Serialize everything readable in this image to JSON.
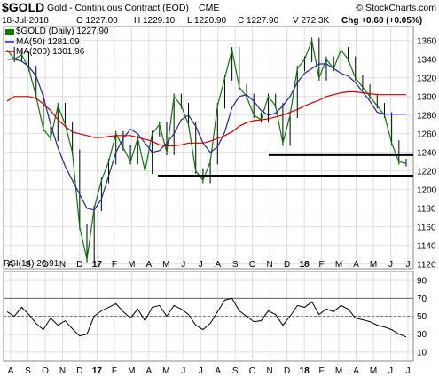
{
  "header": {
    "symbol": "$GOLD",
    "name": "Gold - Continuous Contract (EOD)",
    "exchange": "CME",
    "brand": "© StockCharts.com",
    "date": "18-Jul-2018",
    "quote": {
      "open": "O 1227.00",
      "high": "H 1229.10",
      "low": "L 1220.90",
      "close": "C 1227.90",
      "volume": "V 272.3K",
      "change": "Chg +0.60 (+0.05%)"
    }
  },
  "legend": {
    "price": "$GOLD (Daily) 1227.90",
    "ma50": "MA(50) 1281.09",
    "ma200": "MA(200) 1301.96"
  },
  "rsi_panel": {
    "label": "RSI(14) 26.91"
  },
  "colors": {
    "price": "#008000",
    "bar": "#000000",
    "ma50": "#2222aa",
    "ma200": "#cc0000",
    "grid": "#d6d6d6",
    "rsi": "#000000"
  },
  "chart_data": [
    {
      "type": "line",
      "title": "$GOLD (Daily) 1227.90",
      "x_ticks": [
        "A",
        "S",
        "O",
        "N",
        "D",
        "17",
        "F",
        "M",
        "A",
        "M",
        "J",
        "J",
        "A",
        "S",
        "O",
        "N",
        "D",
        "18",
        "F",
        "M",
        "A",
        "M",
        "J",
        "J"
      ],
      "ylim": [
        1115,
        1375
      ],
      "y_ticks": [
        1120,
        1140,
        1160,
        1180,
        1200,
        1220,
        1240,
        1260,
        1280,
        1300,
        1320,
        1340,
        1360
      ],
      "series": [
        {
          "name": "$GOLD",
          "values": [
            1350,
            1340,
            1345,
            1330,
            1300,
            1265,
            1255,
            1290,
            1270,
            1240,
            1160,
            1125,
            1180,
            1210,
            1230,
            1260,
            1245,
            1230,
            1255,
            1220,
            1260,
            1270,
            1240,
            1300,
            1290,
            1270,
            1220,
            1210,
            1230,
            1290,
            1320,
            1350,
            1310,
            1300,
            1280,
            1275,
            1300,
            1290,
            1250,
            1280,
            1330,
            1340,
            1360,
            1320,
            1340,
            1330,
            1350,
            1340,
            1320,
            1310,
            1300,
            1290,
            1280,
            1250,
            1230,
            1228
          ]
        },
        {
          "name": "MA(50)",
          "values": [
            1340,
            1340,
            1338,
            1332,
            1322,
            1300,
            1270,
            1245,
            1225,
            1210,
            1195,
            1180,
            1178,
            1190,
            1215,
            1240,
            1255,
            1265,
            1260,
            1250,
            1240,
            1242,
            1250,
            1260,
            1275,
            1280,
            1268,
            1250,
            1240,
            1246,
            1262,
            1288,
            1300,
            1302,
            1295,
            1285,
            1280,
            1282,
            1290,
            1300,
            1315,
            1325,
            1330,
            1335,
            1335,
            1330,
            1325,
            1322,
            1315,
            1305,
            1295,
            1283,
            1281,
            1281,
            1281,
            1281
          ]
        },
        {
          "name": "MA(200)",
          "values": [
            1295,
            1300,
            1300,
            1300,
            1298,
            1292,
            1285,
            1275,
            1268,
            1262,
            1260,
            1258,
            1256,
            1256,
            1257,
            1258,
            1258,
            1258,
            1256,
            1254,
            1252,
            1248,
            1247,
            1247,
            1248,
            1250,
            1250,
            1250,
            1252,
            1255,
            1258,
            1262,
            1268,
            1272,
            1274,
            1275,
            1276,
            1278,
            1280,
            1283,
            1286,
            1290,
            1293,
            1296,
            1300,
            1302,
            1304,
            1305,
            1305,
            1304,
            1303,
            1302,
            1302,
            1302,
            1302,
            1302
          ]
        }
      ],
      "hlines": [
        1215,
        1237
      ]
    },
    {
      "type": "line",
      "title": "RSI(14) 26.91",
      "x_ticks": [
        "A",
        "S",
        "O",
        "N",
        "D",
        "17",
        "F",
        "M",
        "A",
        "M",
        "J",
        "J",
        "A",
        "S",
        "O",
        "N",
        "D",
        "18",
        "F",
        "M",
        "A",
        "M",
        "J",
        "J"
      ],
      "ylim": [
        0,
        100
      ],
      "y_ticks": [
        10,
        30,
        50,
        70,
        90
      ],
      "ref_lines": [
        30,
        50,
        70
      ],
      "series": [
        {
          "name": "RSI(14)",
          "values": [
            55,
            50,
            60,
            52,
            42,
            35,
            48,
            40,
            45,
            36,
            28,
            30,
            50,
            56,
            60,
            64,
            55,
            48,
            58,
            45,
            60,
            62,
            50,
            62,
            58,
            52,
            40,
            35,
            42,
            55,
            68,
            70,
            56,
            50,
            44,
            45,
            56,
            52,
            40,
            50,
            62,
            60,
            66,
            52,
            58,
            55,
            62,
            58,
            48,
            46,
            44,
            40,
            38,
            35,
            30,
            27
          ]
        }
      ]
    }
  ]
}
